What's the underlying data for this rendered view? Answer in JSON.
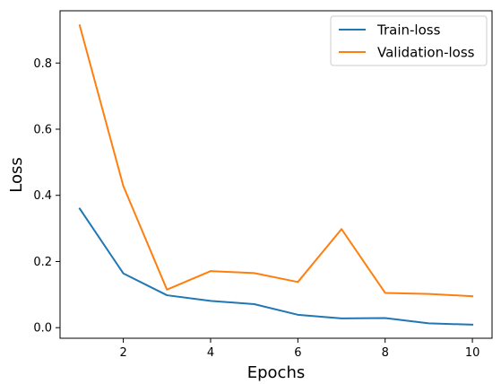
{
  "chart_data": {
    "type": "line",
    "title": "",
    "xlabel": "Epochs",
    "ylabel": "Loss",
    "x": [
      1,
      2,
      3,
      4,
      5,
      6,
      7,
      8,
      9,
      10
    ],
    "xlim": [
      0.55,
      10.45
    ],
    "ylim": [
      -0.032,
      0.958
    ],
    "xticks": [
      2,
      4,
      6,
      8,
      10
    ],
    "xtick_labels": [
      "2",
      "4",
      "6",
      "8",
      "10"
    ],
    "yticks": [
      0.0,
      0.2,
      0.4,
      0.6,
      0.8
    ],
    "ytick_labels": [
      "0.0",
      "0.2",
      "0.4",
      "0.6",
      "0.8"
    ],
    "grid": false,
    "legend_position": "top-right",
    "series": [
      {
        "name": "Train-loss",
        "color": "#1f77b4",
        "values": [
          0.36,
          0.164,
          0.098,
          0.081,
          0.071,
          0.039,
          0.028,
          0.029,
          0.013,
          0.009
        ]
      },
      {
        "name": "Validation-loss",
        "color": "#ff7f0e",
        "values": [
          0.914,
          0.428,
          0.115,
          0.171,
          0.165,
          0.138,
          0.298,
          0.105,
          0.102,
          0.095
        ]
      }
    ]
  }
}
